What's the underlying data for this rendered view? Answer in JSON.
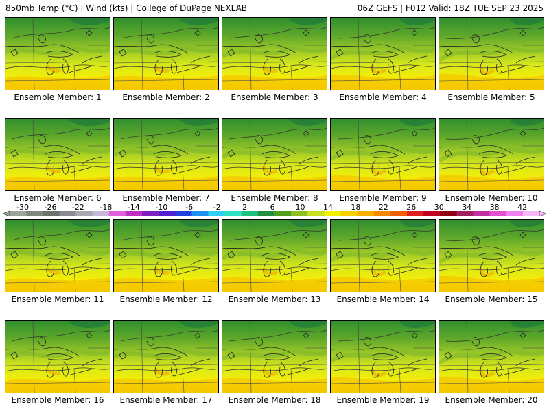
{
  "header": {
    "title": "850mb Temp (°C) | Wind (kts) | College of DuPage NEXLAB",
    "run_info": "06Z GEFS | F012 Valid: 18Z TUE SEP 23 2025"
  },
  "colorbar": {
    "ticks": [
      "-30",
      "-26",
      "-22",
      "-18",
      "-14",
      "-10",
      "-6",
      "-2",
      "2",
      "6",
      "10",
      "14",
      "18",
      "22",
      "26",
      "30",
      "34",
      "38",
      "42"
    ],
    "colors": [
      "#9aa49a",
      "#7e887e",
      "#6c726c",
      "#8a8a92",
      "#a8a8b0",
      "#c8b8d8",
      "#e060e0",
      "#c030c0",
      "#8020c0",
      "#5020d0",
      "#2040e0",
      "#2090f0",
      "#30d0f0",
      "#30e0c0",
      "#20c080",
      "#209040",
      "#50a020",
      "#90c020",
      "#c8e020",
      "#f0f000",
      "#f8d000",
      "#f8b000",
      "#f88800",
      "#f06000",
      "#e02020",
      "#c00020",
      "#900010",
      "#a02060",
      "#c030a0",
      "#e050d0",
      "#f080f0",
      "#f8b8f8"
    ]
  },
  "panels": [
    {
      "label": "Ensemble Member: 1"
    },
    {
      "label": "Ensemble Member: 2"
    },
    {
      "label": "Ensemble Member: 3"
    },
    {
      "label": "Ensemble Member: 4"
    },
    {
      "label": "Ensemble Member: 5"
    },
    {
      "label": "Ensemble Member: 6"
    },
    {
      "label": "Ensemble Member: 7"
    },
    {
      "label": "Ensemble Member: 8"
    },
    {
      "label": "Ensemble Member: 9"
    },
    {
      "label": "Ensemble Member: 10"
    },
    {
      "label": "Ensemble Member: 11"
    },
    {
      "label": "Ensemble Member: 12"
    },
    {
      "label": "Ensemble Member: 13"
    },
    {
      "label": "Ensemble Member: 14"
    },
    {
      "label": "Ensemble Member: 15"
    },
    {
      "label": "Ensemble Member: 16"
    },
    {
      "label": "Ensemble Member: 17"
    },
    {
      "label": "Ensemble Member: 18"
    },
    {
      "label": "Ensemble Member: 19"
    },
    {
      "label": "Ensemble Member: 20"
    }
  ]
}
